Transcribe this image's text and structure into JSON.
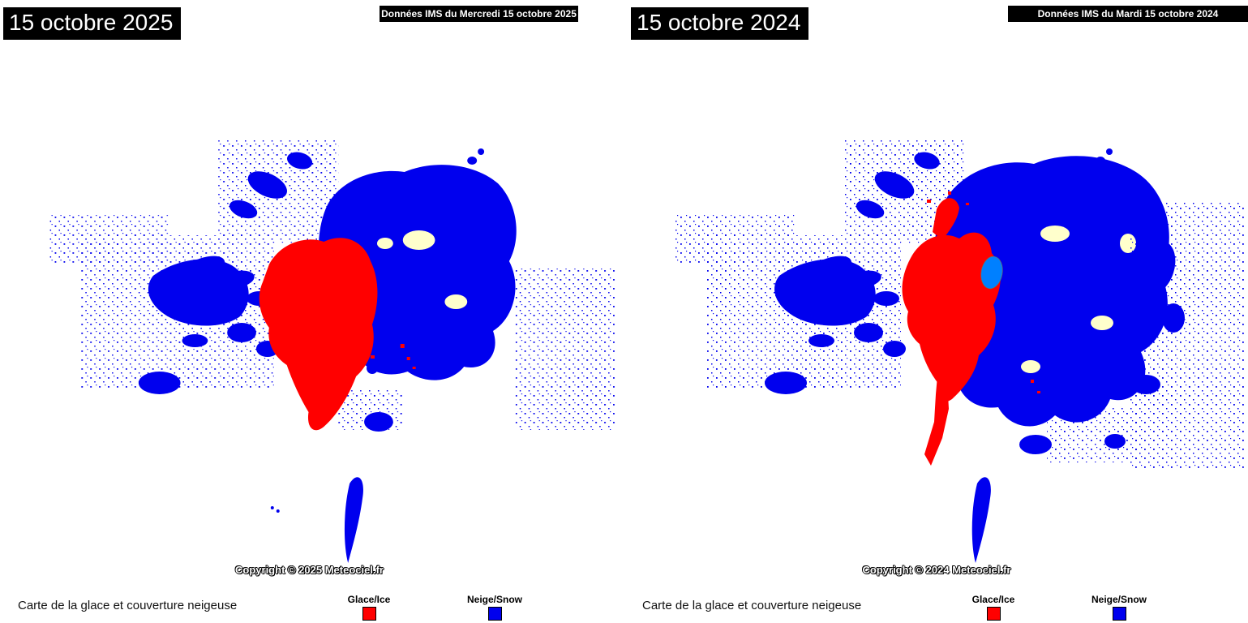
{
  "panels": {
    "p2025": {
      "date": "15 octobre 2025",
      "source": "Données IMS du Mercredi 15 octobre 2025",
      "copyright": "Copyright © 2025 Meteociel.fr",
      "caption": "Carte de la glace et couverture neigeuse"
    },
    "p2024": {
      "date": "15 octobre 2024",
      "source": "Données IMS du Mardi 15 octobre 2024",
      "copyright": "Copyright © 2024 Meteociel.fr",
      "caption": "Carte de la glace et couverture neigeuse"
    }
  },
  "legend": {
    "ice_label": "Glace/Ice",
    "snow_label": "Neige/Snow"
  },
  "map_colors": {
    "ocean": "#0080ff",
    "land": "#ffffcc",
    "snow": "#0000ee",
    "ice": "#ff0000",
    "coastline": "#70705a",
    "speckle": "#444444"
  }
}
